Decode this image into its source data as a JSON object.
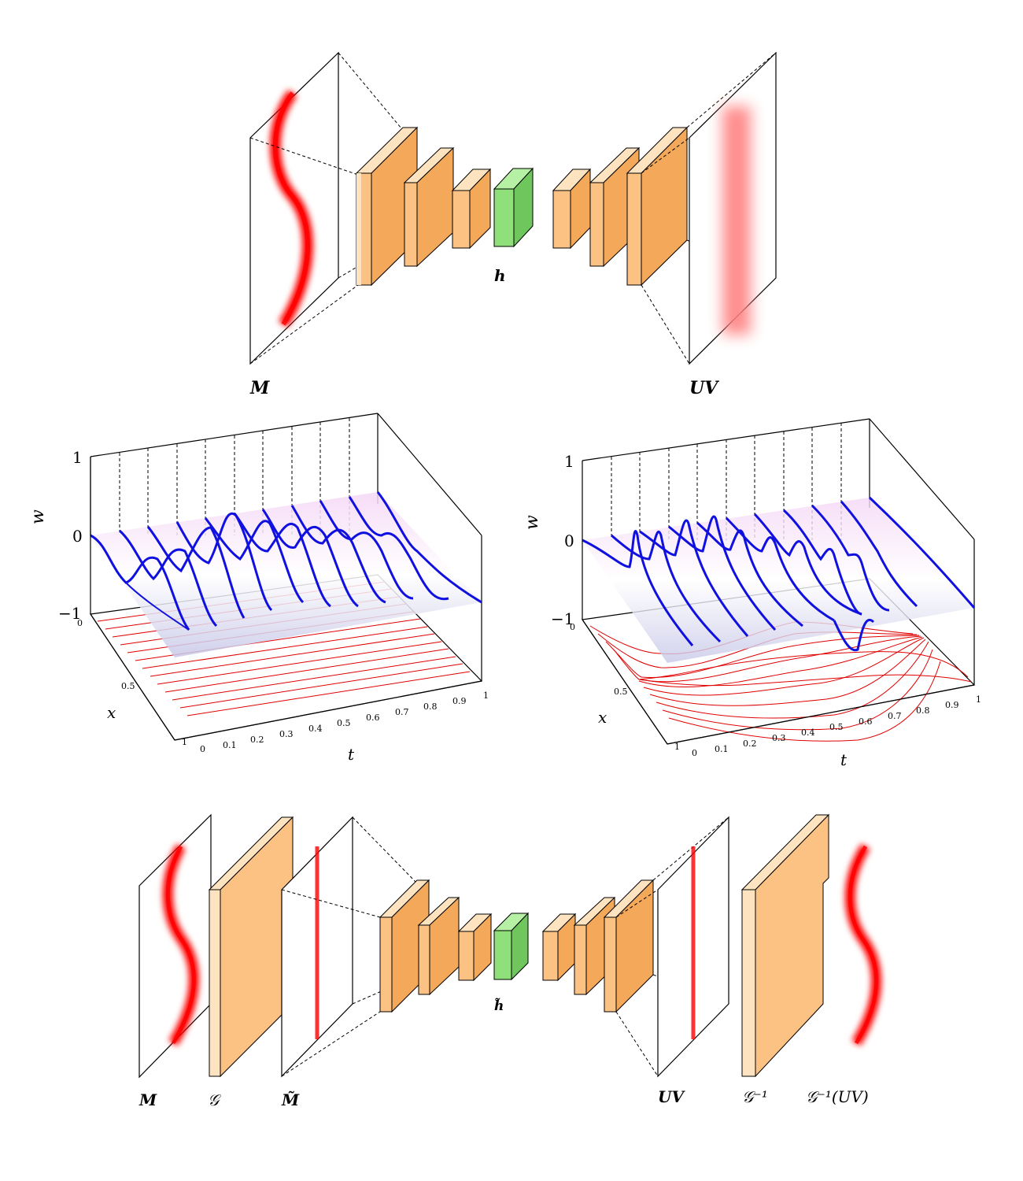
{
  "top_panel": {
    "input_label": "M",
    "latent_label": "h",
    "output_label": "UV"
  },
  "plots": [
    {
      "w_axis": {
        "label": "w",
        "ticks": [
          "1",
          "0",
          "−1"
        ]
      },
      "x_axis": {
        "label": "x",
        "ticks": [
          "0",
          "0.5",
          "1"
        ]
      },
      "t_axis": {
        "label": "t",
        "ticks": [
          "0",
          "0.1",
          "0.2",
          "0.3",
          "0.4",
          "0.5",
          "0.6",
          "0.7",
          "0.8",
          "0.9",
          "1"
        ]
      }
    },
    {
      "w_axis": {
        "label": "w",
        "ticks": [
          "1",
          "0",
          "−1"
        ]
      },
      "x_axis": {
        "label": "x",
        "ticks": [
          "0",
          "0.5",
          "1"
        ]
      },
      "t_axis": {
        "label": "t",
        "ticks": [
          "0",
          "0.1",
          "0.2",
          "0.3",
          "0.4",
          "0.5",
          "0.6",
          "0.7",
          "0.8",
          "0.9",
          "1"
        ]
      }
    }
  ],
  "bottom_panel": {
    "input_label": "M",
    "g_label": "𝒢",
    "mtilde_label": "M̃",
    "latent_label": "h̃",
    "output_label": "UV",
    "ginv_label": "𝒢⁻¹",
    "result_label": "𝒢⁻¹(UV)"
  },
  "colors": {
    "block": "#fcc283",
    "block_side": "#f4a95a",
    "block_front": "#fde3c0",
    "latent": "#8fe07a",
    "latent_side": "#6fc65c",
    "wave": "#ff0000",
    "surface_line": "#1010e0",
    "contour": "#e00000"
  }
}
